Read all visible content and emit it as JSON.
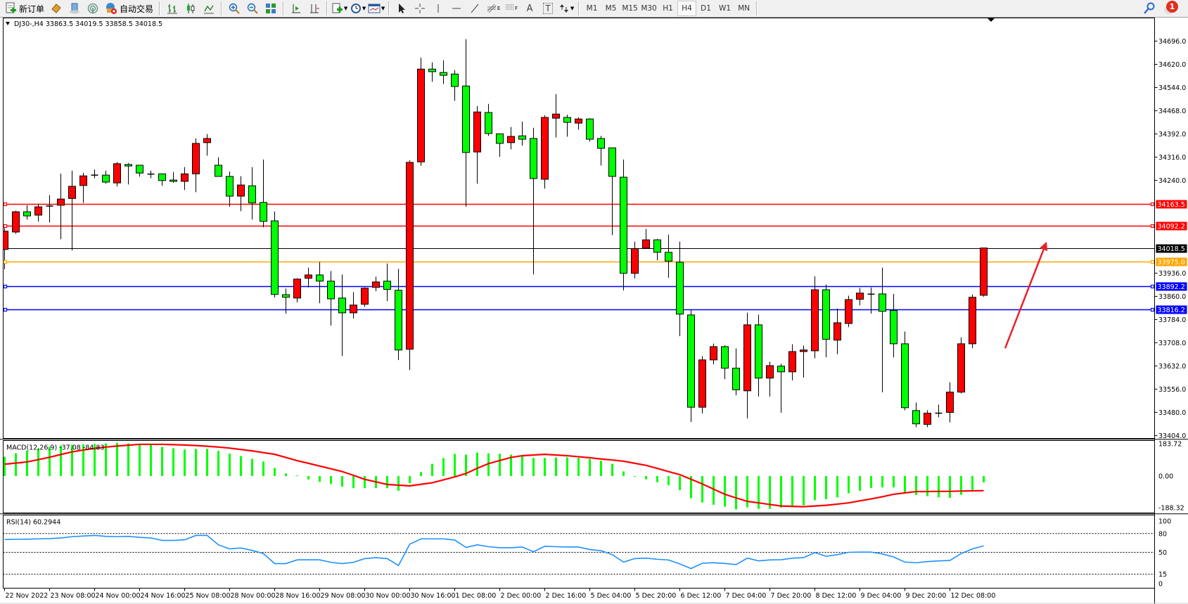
{
  "toolbar": {
    "new_order_label": "新订单",
    "auto_trading_label": "自动交易",
    "icons": [
      "new-order-icon",
      "market-watch-icon",
      "data-window-icon",
      "signals-icon",
      "auto-trading-icon",
      "bar-chart-icon",
      "candlestick-icon",
      "line-chart-icon",
      "zoom-in-icon",
      "zoom-out-icon",
      "tile-windows-icon",
      "auto-scroll-icon",
      "chart-shift-icon",
      "indicators-icon",
      "periods-icon",
      "templates-icon",
      "cursor-icon",
      "crosshair-icon",
      "vertical-line-icon",
      "horizontal-line-icon",
      "trendline-icon",
      "fibonacci-icon",
      "fibonacci-fan-icon",
      "text-icon",
      "text-label-icon",
      "arrows-icon"
    ],
    "fibo_e_label": "E",
    "fibo_f_label": "F",
    "text_label": "A",
    "text_label_t": "T",
    "timeframes": [
      "M1",
      "M5",
      "M15",
      "M30",
      "H1",
      "H4",
      "D1",
      "W1",
      "MN"
    ],
    "active_timeframe": "H4",
    "notification_count": "1"
  },
  "chart": {
    "symbol_header": "DJ30-,H4  33863.5 34019.5 33858.5 34018.5",
    "colors": {
      "bull": "#ff0000",
      "bear": "#00ff00",
      "doji": "#000000",
      "wick": "#000000"
    },
    "price_ticks": [
      "34696.0",
      "34620.0",
      "34544.0",
      "34468.0",
      "34392.0",
      "34316.0",
      "34240.0",
      "33936.0",
      "33860.0",
      "33784.0",
      "33708.0",
      "33632.0",
      "33556.0",
      "33480.0",
      "33404.0"
    ],
    "levels": [
      {
        "price": 34163.5,
        "label": "34163.5",
        "color": "#ff0000"
      },
      {
        "price": 34092.2,
        "label": "34092.2",
        "color": "#ff0000"
      },
      {
        "price": 34018.5,
        "label": "34018.5",
        "color": "#000000"
      },
      {
        "price": 33975.0,
        "label": "33975.0",
        "color": "#ffa500"
      },
      {
        "price": 33892.2,
        "label": "33892.2",
        "color": "#0000ff"
      },
      {
        "price": 33816.2,
        "label": "33816.2",
        "color": "#0000ff"
      }
    ],
    "arrow_color": "#e8202a",
    "time_labels": [
      "22 Nov 2022",
      "23 Nov 08:00",
      "24 Nov 00:00",
      "24 Nov 16:00",
      "25 Nov 08:00",
      "28 Nov 00:00",
      "28 Nov 16:00",
      "29 Nov 08:00",
      "30 Nov 00:00",
      "30 Nov 16:00",
      "1 Dec 08:00",
      "2 Dec 00:00",
      "2 Dec 16:00",
      "5 Dec 04:00",
      "5 Dec 20:00",
      "6 Dec 12:00",
      "7 Dec 04:00",
      "7 Dec 20:00",
      "8 Dec 12:00",
      "9 Dec 04:00",
      "9 Dec 20:00",
      "12 Dec 08:00"
    ],
    "candles_ohlc": [
      [
        34013.7,
        34083.5,
        33949.0,
        34073.3
      ],
      [
        34070.7,
        34140.5,
        34064.8,
        34137.1
      ],
      [
        34137.1,
        34158.4,
        34111.6,
        34123.5
      ],
      [
        34126.0,
        34161.8,
        34104.7,
        34153.3
      ],
      [
        34155.8,
        34191.6,
        34102.2,
        34155.8
      ],
      [
        34158.4,
        34262.2,
        34046.9,
        34178.8
      ],
      [
        34180.5,
        34271.6,
        34010.3,
        34220.5
      ],
      [
        34223.1,
        34264.8,
        34166.0,
        34254.6
      ],
      [
        34257.1,
        34275.8,
        34246.9,
        34257.1
      ],
      [
        34257.1,
        34271.6,
        34229.0,
        34234.2
      ],
      [
        34231.6,
        34299.7,
        34219.7,
        34294.6
      ],
      [
        34292.0,
        34297.1,
        34226.5,
        34286.9
      ],
      [
        34289.5,
        34289.5,
        34252.0,
        34263.9
      ],
      [
        34260.5,
        34271.6,
        34246.9,
        34260.5
      ],
      [
        34261.4,
        34261.4,
        34222.2,
        34239.3
      ],
      [
        34241.0,
        34267.3,
        34232.4,
        34236.7
      ],
      [
        34236.7,
        34283.5,
        34208.6,
        34261.4
      ],
      [
        34261.4,
        34378.0,
        34201.0,
        34361.0
      ],
      [
        34363.5,
        34391.6,
        34320.9,
        34377.1
      ],
      [
        34289.5,
        34315.8,
        34252.9,
        34252.9
      ],
      [
        34252.9,
        34269.0,
        34153.3,
        34188.2
      ],
      [
        34188.2,
        34253.7,
        34138.8,
        34224.8
      ],
      [
        34222.2,
        34283.5,
        34111.6,
        34166.0
      ],
      [
        34167.7,
        34308.2,
        34086.0,
        34105.6
      ],
      [
        34107.3,
        34138.0,
        33856.2,
        33866.4
      ],
      [
        33865.6,
        33885.3,
        33803.4,
        33857.0
      ],
      [
        33854.5,
        33919.2,
        33840.0,
        33916.6
      ],
      [
        33919.2,
        33954.1,
        33889.4,
        33930.2
      ],
      [
        33930.2,
        33972.8,
        33837.5,
        33909.8
      ],
      [
        33909.8,
        33943.0,
        33764.3,
        33851.9
      ],
      [
        33854.5,
        33931.1,
        33664.7,
        33806.0
      ],
      [
        33806.0,
        33874.1,
        33787.3,
        33831.5
      ],
      [
        33834.1,
        33889.4,
        33825.6,
        33886.8
      ],
      [
        33889.4,
        33924.3,
        33876.6,
        33907.3
      ],
      [
        33909.8,
        33967.7,
        33844.3,
        33882.6
      ],
      [
        33880.0,
        33950.0,
        33651.1,
        33684.3
      ],
      [
        33686.8,
        34305.6,
        33618.7,
        34298.8
      ],
      [
        34300.5,
        34641.9,
        34287.8,
        34604.4
      ],
      [
        34604.4,
        34626.5,
        34562.7,
        34595.9
      ],
      [
        34593.3,
        34633.3,
        34555.9,
        34584.0
      ],
      [
        34588.2,
        34601.0,
        34500.6,
        34547.4
      ],
      [
        34549.1,
        34702.3,
        34153.3,
        34331.2
      ],
      [
        34332.9,
        34483.5,
        34229.0,
        34464.0
      ],
      [
        34462.3,
        34490.3,
        34385.7,
        34393.3
      ],
      [
        34392.5,
        34392.5,
        34316.7,
        34361.0
      ],
      [
        34363.5,
        34414.6,
        34341.4,
        34384.0
      ],
      [
        34385.7,
        34432.5,
        34353.3,
        34374.6
      ],
      [
        34377.1,
        34412.0,
        33932.0,
        34246.0
      ],
      [
        34243.5,
        34452.9,
        34212.9,
        34446.1
      ],
      [
        34443.5,
        34522.7,
        34380.5,
        34457.1
      ],
      [
        34446.1,
        34454.6,
        34383.1,
        34429.9
      ],
      [
        34427.4,
        34446.1,
        34406.1,
        34441.0
      ],
      [
        34441.0,
        34443.5,
        34366.9,
        34374.6
      ],
      [
        34377.1,
        34385.7,
        34288.6,
        34344.8
      ],
      [
        34346.5,
        34346.5,
        34060.5,
        34252.9
      ],
      [
        34250.3,
        34308.2,
        33879.2,
        33935.4
      ],
      [
        33935.4,
        34039.2,
        33918.3,
        34016.2
      ],
      [
        34018.0,
        34080.9,
        34018.0,
        34045.2
      ],
      [
        34045.2,
        34048.6,
        33977.9,
        34004.3
      ],
      [
        34004.3,
        34062.2,
        33920.9,
        33975.4
      ],
      [
        33972.0,
        34039.2,
        33729.4,
        33801.7
      ],
      [
        33799.2,
        33814.5,
        33448.5,
        33496.9
      ],
      [
        33496.9,
        33663.9,
        33476.5,
        33651.9
      ],
      [
        33651.9,
        33705.5,
        33637.5,
        33695.4
      ],
      [
        33695.4,
        33699.6,
        33588.9,
        33624.7
      ],
      [
        33624.7,
        33689.4,
        33536.2,
        33554.0
      ],
      [
        33550.6,
        33806.8,
        33460.4,
        33766.8
      ],
      [
        33766.8,
        33800.0,
        33531.9,
        33592.3
      ],
      [
        33592.3,
        33646.0,
        33531.9,
        33633.2
      ],
      [
        33631.5,
        33639.2,
        33479.1,
        33612.8
      ],
      [
        33612.8,
        33703.0,
        33584.7,
        33679.2
      ],
      [
        33679.2,
        33698.7,
        33594.0,
        33684.3
      ],
      [
        33681.7,
        33926.0,
        33657.2,
        33881.7
      ],
      [
        33881.7,
        33898.8,
        33660.5,
        33719.2
      ],
      [
        33716.6,
        33820.4,
        33670.6,
        33773.6
      ],
      [
        33771.1,
        33862.2,
        33759.2,
        33849.4
      ],
      [
        33850.3,
        33887.7,
        33830.7,
        33870.7
      ],
      [
        33867.3,
        33889.4,
        33803.4,
        33867.3
      ],
      [
        33868.1,
        33954.1,
        33545.5,
        33811.1
      ],
      [
        33813.6,
        33868.1,
        33660.5,
        33704.7
      ],
      [
        33704.7,
        33744.7,
        33486.8,
        33495.3
      ],
      [
        33486.0,
        33512.3,
        33431.5,
        33442.5
      ],
      [
        33440.8,
        33486.8,
        33431.5,
        33477.4
      ],
      [
        33477.4,
        33505.5,
        33463.8,
        33477.4
      ],
      [
        33479.9,
        33578.6,
        33446.8,
        33546.4
      ],
      [
        33546.4,
        33726.0,
        33542.1,
        33704.7
      ],
      [
        33704.7,
        33866.4,
        33690.2,
        33857.0
      ],
      [
        33863.5,
        34019.5,
        33858.5,
        34018.5
      ]
    ]
  },
  "macd": {
    "label": "MACD(12,26,9) -37.08 -84.83",
    "axis_labels": [
      "183.72",
      "0.00",
      "-188.32"
    ],
    "range": [
      -188.32,
      183.72
    ],
    "histogram_color": "#00ff00",
    "signal_color": "#ff0000",
    "histogram": [
      112,
      132,
      148,
      161,
      170,
      177,
      181,
      184,
      186,
      189,
      193,
      189,
      186,
      184,
      169,
      161,
      154,
      157,
      157,
      146,
      130,
      116,
      100,
      84,
      47,
      15,
      3,
      -20,
      -34,
      -46,
      -62,
      -70,
      -70,
      -70,
      -70,
      -86,
      -42,
      23,
      71,
      104,
      128,
      124,
      136,
      132,
      129,
      124,
      116,
      105,
      105,
      108,
      108,
      105,
      98,
      88,
      71,
      27,
      -3,
      -19,
      -36,
      -53,
      -82,
      -129,
      -154,
      -167,
      -178,
      -194,
      -182,
      -191,
      -190,
      -184,
      -171,
      -170,
      -140,
      -134,
      -124,
      -100,
      -86,
      -69,
      -66,
      -66,
      -97,
      -110,
      -117,
      -124,
      -127,
      -109,
      -82,
      -37.08
    ],
    "signal": [
      69,
      75,
      82,
      95,
      109,
      125,
      140,
      151,
      161,
      168,
      174,
      179,
      184,
      184,
      184,
      182,
      180,
      177,
      173,
      168,
      162,
      154,
      146,
      136,
      126,
      108,
      89,
      74,
      58,
      42,
      26,
      4,
      -19,
      -34,
      -49,
      -53,
      -57,
      -48,
      -39,
      -22,
      -5,
      15,
      45,
      72,
      90,
      108,
      118,
      122,
      126,
      122,
      118,
      112,
      106,
      99,
      93,
      86,
      74,
      62,
      44,
      26,
      8,
      -19,
      -46,
      -76,
      -106,
      -127,
      -147,
      -156,
      -165,
      -174,
      -176,
      -178,
      -174,
      -170,
      -163,
      -156,
      -144,
      -133,
      -120,
      -106,
      -98,
      -90,
      -90,
      -89,
      -89,
      -87,
      -86,
      -84.83
    ]
  },
  "rsi": {
    "label": "RSI(14) 60.2944",
    "axis_labels": [
      "100",
      "80",
      "50",
      "15",
      "0"
    ],
    "levels": [
      80,
      50,
      15
    ],
    "line_color": "#1e90ff",
    "values": [
      70.4,
      70.8,
      71,
      71.5,
      72,
      73,
      75,
      76,
      77,
      75.5,
      75,
      75.5,
      74,
      73,
      69,
      69,
      70,
      77,
      77,
      62,
      55.5,
      57,
      53,
      48,
      32,
      32,
      38,
      38,
      38,
      34,
      32,
      34,
      40,
      41.5,
      40,
      29,
      63,
      71.5,
      71.5,
      71.5,
      69.6,
      57.8,
      62,
      59,
      57.4,
      57.4,
      58.5,
      51,
      59.6,
      59,
      58.5,
      58.5,
      54.4,
      52.6,
      46.3,
      34.4,
      40,
      40.7,
      38.9,
      37.8,
      31.5,
      24,
      32.6,
      33.3,
      32.2,
      30.4,
      40.7,
      36.3,
      37.8,
      38.1,
      40.7,
      41.5,
      49.6,
      43.7,
      46.3,
      50,
      50.4,
      50.4,
      47.4,
      42.6,
      34.4,
      33.3,
      35.2,
      36.3,
      37,
      48,
      55.5,
      60.29
    ]
  }
}
